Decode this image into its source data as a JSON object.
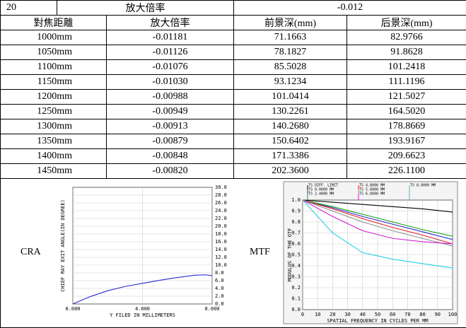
{
  "table": {
    "top": [
      "20",
      "放大倍率",
      "-0.012"
    ],
    "header": [
      "對焦距離",
      "放大倍率",
      "前景深(mm)",
      "后景深(mm)"
    ],
    "rows": [
      [
        "1000mm",
        "-0.01181",
        "71.1663",
        "82.9766"
      ],
      [
        "1050mm",
        "-0.01126",
        "78.1827",
        "91.8628"
      ],
      [
        "1100mm",
        "-0.01076",
        "85.5028",
        "101.2418"
      ],
      [
        "1150mm",
        "-0.01030",
        "93.1234",
        "111.1196"
      ],
      [
        "1200mm",
        "-0.00988",
        "101.0414",
        "121.5027"
      ],
      [
        "1250mm",
        "-0.00949",
        "130.2261",
        "164.5020"
      ],
      [
        "1300mm",
        "-0.00913",
        "140.2680",
        "178.8669"
      ],
      [
        "1350mm",
        "-0.00879",
        "150.6402",
        "193.9167"
      ],
      [
        "1400mm",
        "-0.00848",
        "171.3386",
        "209.6623"
      ],
      [
        "1450mm",
        "-0.00820",
        "202.3600",
        "226.1100"
      ]
    ]
  },
  "chart_data": [
    {
      "type": "line",
      "label": "CRA",
      "xlabel": "Y FILED IN MILLIMETERS",
      "ylabel": "CHIEF RAY EXIT ANGLE(IN DEGREE)",
      "x": [
        0,
        1,
        2,
        3,
        4,
        5,
        6,
        7,
        7.6,
        8
      ],
      "series": [
        {
          "color": "#2a2ad0",
          "values": [
            0,
            1.9,
            3.4,
            4.5,
            5.3,
            6.1,
            6.8,
            7.4,
            7.5,
            7.3
          ]
        }
      ],
      "xlim": [
        0,
        8
      ],
      "xticks": [
        {
          "value": 0,
          "label": "0.000"
        },
        {
          "value": 4,
          "label": "4.000"
        },
        {
          "value": 8,
          "label": "8.000"
        }
      ],
      "ylim": [
        0,
        30
      ],
      "yticks": [
        {
          "value": 0,
          "label": "0.0"
        },
        {
          "value": 2,
          "label": "2.0"
        },
        {
          "value": 4,
          "label": "4.0"
        },
        {
          "value": 6,
          "label": "6.0"
        },
        {
          "value": 8,
          "label": "8.0"
        },
        {
          "value": 10,
          "label": "10.0"
        },
        {
          "value": 12,
          "label": "12.0"
        },
        {
          "value": 14,
          "label": "14.0"
        },
        {
          "value": 16,
          "label": "16.0"
        },
        {
          "value": 18,
          "label": "18.0"
        },
        {
          "value": 20,
          "label": "20.0"
        },
        {
          "value": 22,
          "label": "22.0"
        },
        {
          "value": 24,
          "label": "24.0"
        },
        {
          "value": 26,
          "label": "26.0"
        },
        {
          "value": 28,
          "label": "28.0"
        },
        {
          "value": 30,
          "label": "30.0"
        }
      ],
      "grid": true
    },
    {
      "type": "line",
      "label": "MTF",
      "xlabel": "SPATIAL FREQUENCY IN CYCLES PER MM",
      "ylabel": "MODULUS OF THE OTF",
      "x": [
        0,
        20,
        40,
        60,
        80,
        100
      ],
      "series": [
        {
          "name": "TS DIFF. LIMIT",
          "color": "#000000",
          "values": [
            1,
            0.98,
            0.96,
            0.94,
            0.92,
            0.89
          ]
        },
        {
          "name": "TS 0.0000 MM",
          "color": "#2a2ad0",
          "values": [
            1,
            0.93,
            0.85,
            0.78,
            0.71,
            0.64
          ]
        },
        {
          "name": "TS 2.4000 MM",
          "color": "#10a010",
          "values": [
            1,
            0.94,
            0.87,
            0.8,
            0.73,
            0.67
          ]
        },
        {
          "name": "TS 4.8000 MM",
          "color": "#e02020",
          "values": [
            1,
            0.92,
            0.83,
            0.75,
            0.68,
            0.6
          ]
        },
        {
          "name": "TS 5.6000 MM",
          "color": "#909090",
          "values": [
            1,
            0.9,
            0.8,
            0.72,
            0.65,
            0.58
          ]
        },
        {
          "name": "TS 6.0000 MM",
          "color": "#d020d0",
          "values": [
            1,
            0.85,
            0.72,
            0.65,
            0.62,
            0.6
          ]
        },
        {
          "name": "TS 8.0000 MM",
          "color": "#20d0e0",
          "values": [
            1,
            0.7,
            0.52,
            0.46,
            0.42,
            0.38
          ]
        }
      ],
      "xlim": [
        0,
        100
      ],
      "xticks": [
        0,
        10,
        20,
        30,
        40,
        50,
        60,
        70,
        80,
        90,
        100
      ],
      "ylim": [
        0,
        1
      ],
      "yticks": [
        {
          "value": 0,
          "label": "0.0"
        },
        {
          "value": 0.1,
          "label": "0.1"
        },
        {
          "value": 0.2,
          "label": "0.2"
        },
        {
          "value": 0.3,
          "label": "0.3"
        },
        {
          "value": 0.4,
          "label": "0.4"
        },
        {
          "value": 0.5,
          "label": "0.5"
        },
        {
          "value": 0.6,
          "label": "0.6"
        },
        {
          "value": 0.7,
          "label": "0.7"
        },
        {
          "value": 0.8,
          "label": "0.8"
        },
        {
          "value": 0.9,
          "label": "0.9"
        },
        {
          "value": 1,
          "label": "1.0"
        }
      ],
      "grid": true
    }
  ]
}
